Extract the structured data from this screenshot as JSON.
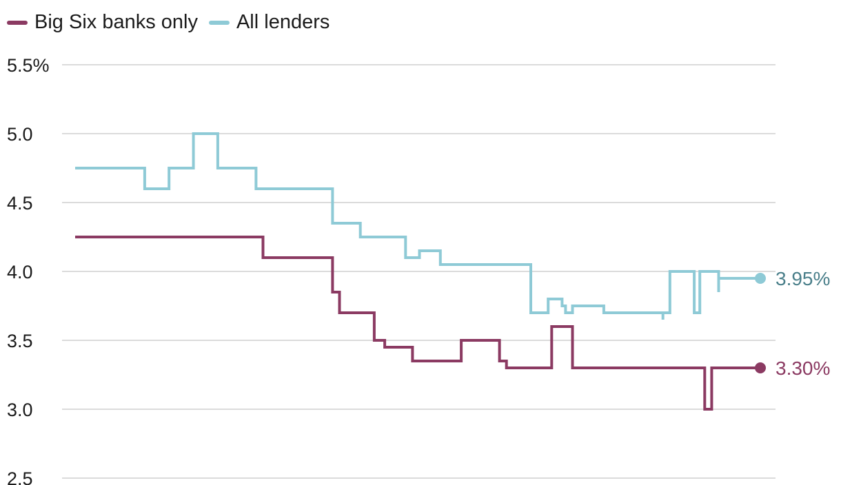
{
  "chart_data": {
    "type": "line",
    "step": true,
    "legend_position": "top-left",
    "grid": true,
    "ylim": [
      2.5,
      5.5
    ],
    "y_ticks": [
      {
        "value": 5.5,
        "label": "5.5%"
      },
      {
        "value": 5.0,
        "label": "5.0"
      },
      {
        "value": 4.5,
        "label": "4.5"
      },
      {
        "value": 4.0,
        "label": "4.0"
      },
      {
        "value": 3.5,
        "label": "3.5"
      },
      {
        "value": 3.0,
        "label": "3.0"
      },
      {
        "value": 2.5,
        "label": "2.5"
      }
    ],
    "series": [
      {
        "name": "Big Six banks only",
        "color": "#8b3a62",
        "end_label": "3.30%",
        "points": [
          [
            0,
            4.25
          ],
          [
            27,
            4.25
          ],
          [
            27,
            4.1
          ],
          [
            37,
            4.1
          ],
          [
            37,
            3.85
          ],
          [
            38,
            3.85
          ],
          [
            38,
            3.7
          ],
          [
            43,
            3.7
          ],
          [
            43,
            3.5
          ],
          [
            44.5,
            3.5
          ],
          [
            44.5,
            3.45
          ],
          [
            48.5,
            3.45
          ],
          [
            48.5,
            3.35
          ],
          [
            55.5,
            3.35
          ],
          [
            55.5,
            3.5
          ],
          [
            61,
            3.5
          ],
          [
            61,
            3.35
          ],
          [
            62,
            3.35
          ],
          [
            62,
            3.3
          ],
          [
            68.5,
            3.3
          ],
          [
            68.5,
            3.6
          ],
          [
            71.5,
            3.6
          ],
          [
            71.5,
            3.3
          ],
          [
            90.5,
            3.3
          ],
          [
            90.5,
            3.0
          ],
          [
            91.5,
            3.0
          ],
          [
            91.5,
            3.3
          ],
          [
            98.5,
            3.3
          ]
        ]
      },
      {
        "name": "All lenders",
        "color": "#8ecad6",
        "end_label": "3.95%",
        "points": [
          [
            0,
            4.75
          ],
          [
            10,
            4.75
          ],
          [
            10,
            4.6
          ],
          [
            13.5,
            4.6
          ],
          [
            13.5,
            4.75
          ],
          [
            17,
            4.75
          ],
          [
            17,
            5.0
          ],
          [
            20.5,
            5.0
          ],
          [
            20.5,
            4.75
          ],
          [
            26,
            4.75
          ],
          [
            26,
            4.6
          ],
          [
            37,
            4.6
          ],
          [
            37,
            4.35
          ],
          [
            41,
            4.35
          ],
          [
            41,
            4.25
          ],
          [
            47.5,
            4.25
          ],
          [
            47.5,
            4.1
          ],
          [
            49.5,
            4.1
          ],
          [
            49.5,
            4.15
          ],
          [
            52.5,
            4.15
          ],
          [
            52.5,
            4.05
          ],
          [
            65.5,
            4.05
          ],
          [
            65.5,
            3.7
          ],
          [
            68,
            3.7
          ],
          [
            68,
            3.8
          ],
          [
            70,
            3.8
          ],
          [
            70,
            3.75
          ],
          [
            70.5,
            3.75
          ],
          [
            70.5,
            3.7
          ],
          [
            71.5,
            3.7
          ],
          [
            71.5,
            3.75
          ],
          [
            76,
            3.75
          ],
          [
            76,
            3.7
          ],
          [
            84.5,
            3.7
          ],
          [
            84.5,
            3.65
          ],
          [
            84.5,
            3.7
          ],
          [
            85.5,
            3.7
          ],
          [
            85.5,
            4.0
          ],
          [
            89,
            4.0
          ],
          [
            89,
            3.7
          ],
          [
            89.8,
            3.7
          ],
          [
            89.8,
            4.0
          ],
          [
            92.5,
            4.0
          ],
          [
            92.5,
            3.85
          ],
          [
            92.5,
            3.95
          ],
          [
            98.5,
            3.95
          ]
        ]
      }
    ]
  }
}
